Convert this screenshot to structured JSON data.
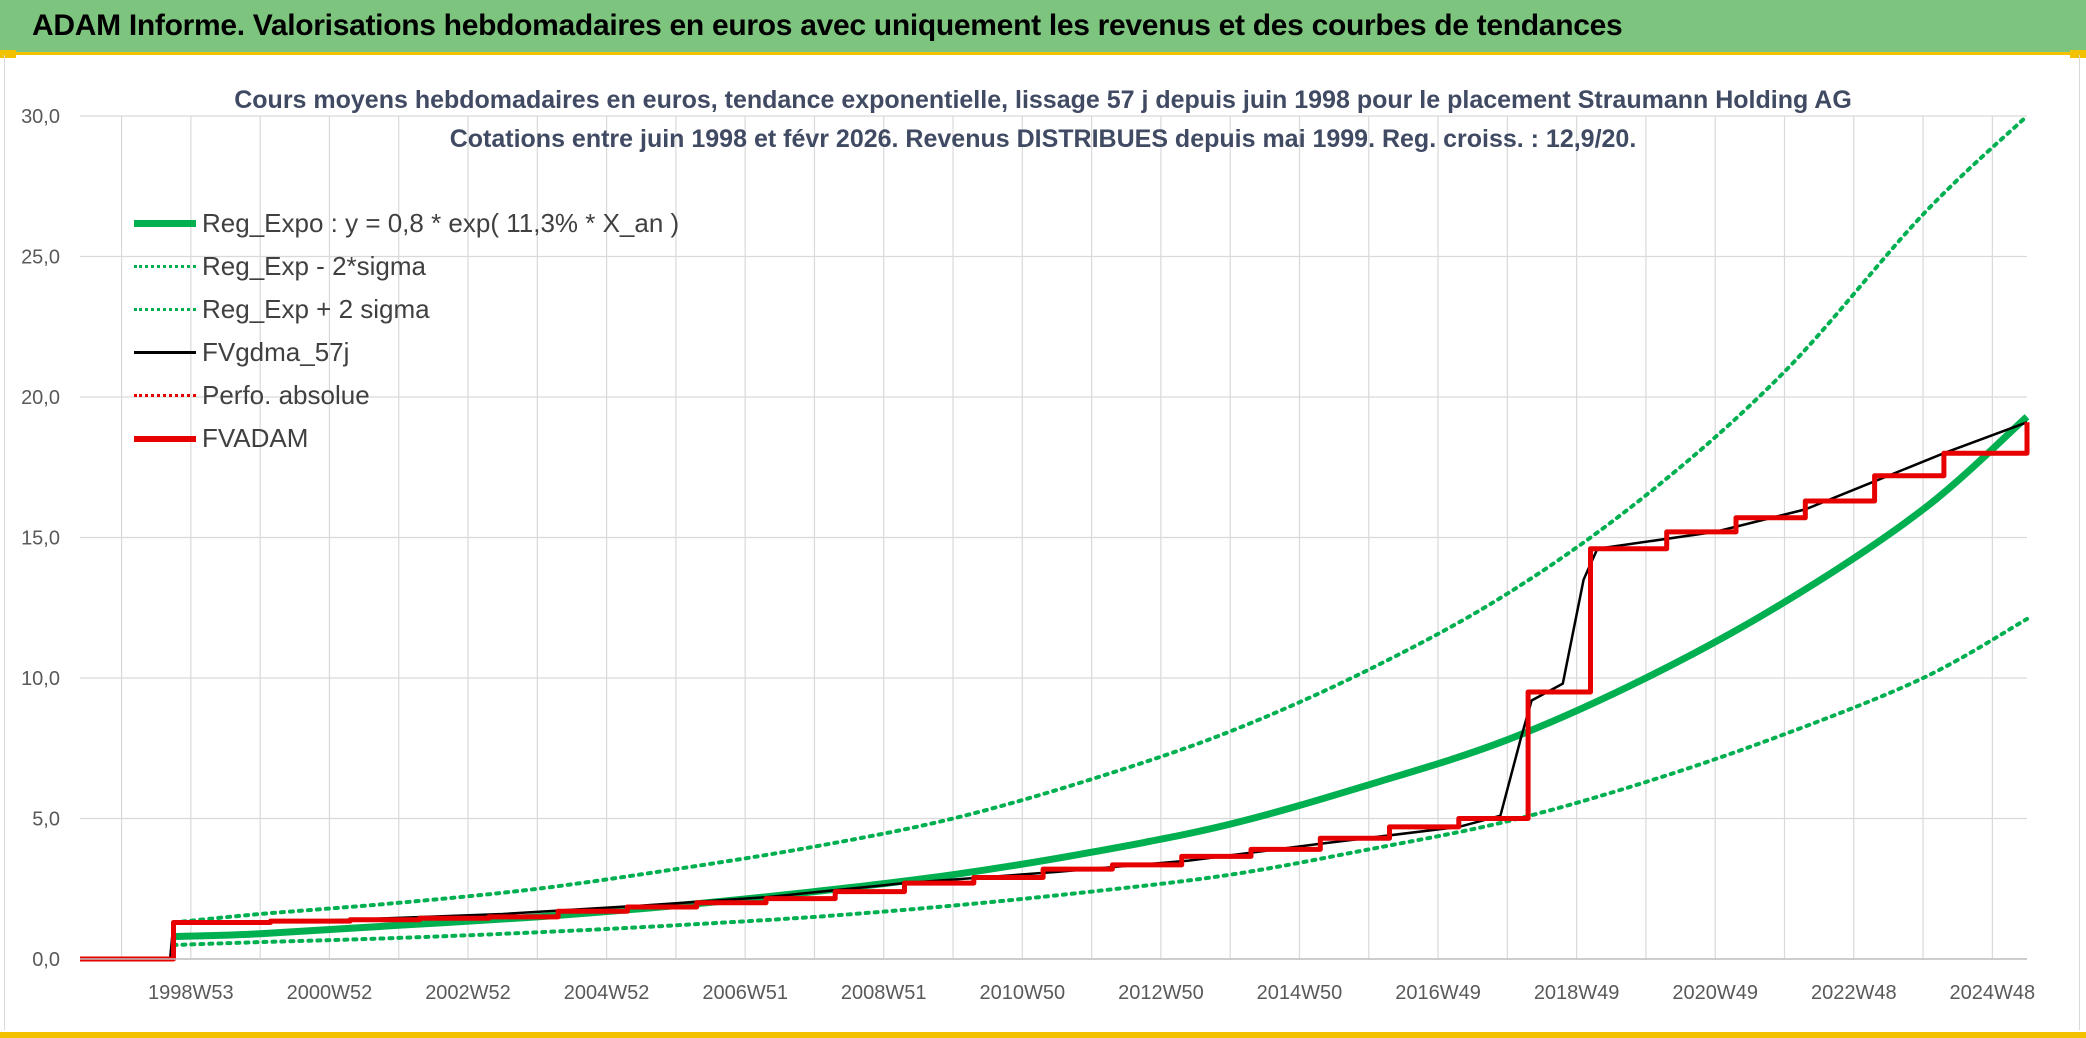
{
  "header": {
    "title": "ADAM Informe. Valorisations hebdomadaires en euros avec uniquement les revenus et des courbes de tendances"
  },
  "colors": {
    "green": "#00b050",
    "red": "#e60000",
    "black": "#000000",
    "banner": "#7dc57e",
    "accent": "#f2c200",
    "grid": "#d9d9d9",
    "title_text": "#404a63"
  },
  "chart_data": {
    "type": "line",
    "title": "Cours moyens hebdomadaires en euros, tendance exponentielle, lissage 57 j depuis juin 1998 pour le placement Straumann Holding AG",
    "subtitle": "Cotations entre juin 1998 et févr 2026. Revenus DISTRIBUES depuis mai 1999. Reg. croiss. : 12,9/20.",
    "xlabel": "",
    "ylabel": "",
    "ylim": [
      0,
      30
    ],
    "xlim": [
      1997.4,
      2025.5
    ],
    "y_ticks": [
      "0,0",
      "5,0",
      "10,0",
      "15,0",
      "20,0",
      "25,0",
      "30,0"
    ],
    "x_ticks": [
      "1998W53",
      "2000W52",
      "2002W52",
      "2004W52",
      "2006W51",
      "2008W51",
      "2010W50",
      "2012W50",
      "2014W50",
      "2016W49",
      "2018W49",
      "2020W49",
      "2022W48",
      "2024W48"
    ],
    "x_tick_years": [
      1999.0,
      2001.0,
      2003.0,
      2005.0,
      2007.0,
      2009.0,
      2011.0,
      2013.0,
      2015.0,
      2017.0,
      2019.0,
      2021.0,
      2023.0,
      2025.0
    ],
    "grid": true,
    "legend_position": "top-left",
    "series": [
      {
        "name": "Reg_Expo : y = 0,8 * exp( 11,3% *  X_an )",
        "style": "solid-green-thick",
        "x": [
          1998.75,
          2000,
          2002,
          2004,
          2006,
          2008,
          2010,
          2012,
          2014,
          2016,
          2018,
          2020,
          2022,
          2024,
          2025.5
        ],
        "values": [
          0.8,
          0.9,
          1.2,
          1.5,
          1.9,
          2.4,
          3.0,
          3.8,
          4.8,
          6.2,
          7.8,
          10.0,
          12.7,
          16.0,
          19.3
        ]
      },
      {
        "name": "Reg_Exp - 2*sigma",
        "style": "dotted-green",
        "x": [
          1998.75,
          2000,
          2002,
          2004,
          2006,
          2008,
          2010,
          2012,
          2014,
          2016,
          2018,
          2020,
          2022,
          2024,
          2025.5
        ],
        "values": [
          0.5,
          0.6,
          0.75,
          0.95,
          1.2,
          1.5,
          1.9,
          2.4,
          3.0,
          3.9,
          4.9,
          6.3,
          8.0,
          10.0,
          12.1
        ]
      },
      {
        "name": "Reg_Exp + 2 sigma",
        "style": "dotted-green",
        "x": [
          1998.75,
          2000,
          2002,
          2004,
          2006,
          2008,
          2010,
          2012,
          2014,
          2016,
          2018,
          2020,
          2022,
          2024,
          2025.5
        ],
        "values": [
          1.3,
          1.6,
          2.0,
          2.5,
          3.2,
          4.0,
          5.0,
          6.4,
          8.1,
          10.3,
          13.0,
          16.5,
          20.9,
          26.5,
          30.0
        ]
      },
      {
        "name": "FVgdma_57j",
        "style": "solid-black-thin",
        "x": [
          1997.4,
          1998.7,
          1998.75,
          1999.5,
          2001.3,
          2003.5,
          2005.5,
          2007.3,
          2009.3,
          2011.5,
          2013.4,
          2015.3,
          2017.3,
          2017.9,
          2018.2,
          2018.35,
          2018.8,
          2019.1,
          2019.3,
          2021.0,
          2022.3,
          2023.3,
          2024.3,
          2025.5
        ],
        "values": [
          0,
          0,
          1.3,
          1.3,
          1.4,
          1.6,
          1.9,
          2.2,
          2.7,
          3.1,
          3.5,
          4.1,
          4.7,
          5.1,
          7.9,
          9.2,
          9.8,
          13.5,
          14.6,
          15.2,
          16.0,
          17.0,
          18.0,
          19.1
        ]
      },
      {
        "name": "Perfo. absolue",
        "style": "dotted-red",
        "x": [],
        "values": []
      },
      {
        "name": "FVADAM",
        "style": "solid-red-thick-step",
        "x": [
          1997.4,
          1998.75,
          2000.15,
          2001.3,
          2002.3,
          2003.3,
          2004.3,
          2005.3,
          2006.3,
          2007.3,
          2008.3,
          2009.3,
          2010.3,
          2011.3,
          2012.3,
          2013.3,
          2014.3,
          2015.3,
          2016.3,
          2017.3,
          2018.3,
          2019.2,
          2020.3,
          2021.3,
          2022.3,
          2023.3,
          2024.3,
          2025.5
        ],
        "values": [
          0,
          1.3,
          1.35,
          1.4,
          1.45,
          1.5,
          1.7,
          1.85,
          2.0,
          2.15,
          2.4,
          2.7,
          2.9,
          3.2,
          3.35,
          3.65,
          3.9,
          4.3,
          4.7,
          5.0,
          9.5,
          14.6,
          15.2,
          15.7,
          16.3,
          17.2,
          18.0,
          19.1
        ]
      }
    ]
  }
}
